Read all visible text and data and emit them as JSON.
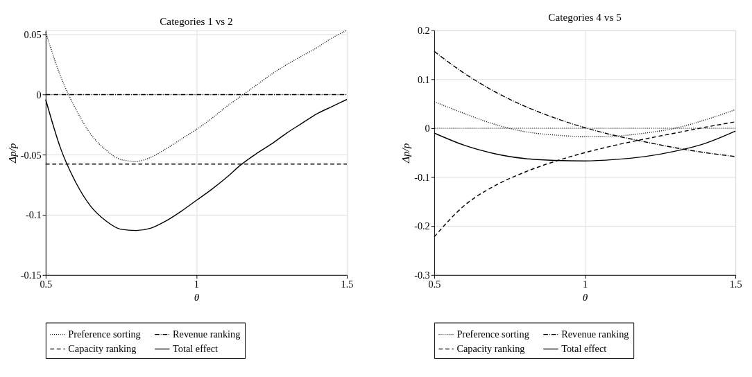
{
  "chart_data": [
    {
      "type": "line",
      "title": "Categories 1 vs 2",
      "xlabel": "θ",
      "ylabel": "Δp/p",
      "legend": "bottom",
      "grid": true,
      "x": [
        0.5,
        0.55,
        0.6,
        0.65,
        0.7,
        0.75,
        0.8,
        0.85,
        0.9,
        0.95,
        1.0,
        1.05,
        1.1,
        1.15,
        1.2,
        1.25,
        1.3,
        1.35,
        1.4,
        1.45,
        1.5
      ],
      "xlim": [
        0.5,
        1.5
      ],
      "xticks": [
        0.5,
        1,
        1.5
      ],
      "ylim": [
        -0.15,
        0.0535
      ],
      "yticks": [
        -0.15,
        -0.1,
        -0.05,
        0,
        0.05
      ],
      "series": [
        {
          "name": "Preference sorting",
          "color": "#000000",
          "line_style": "dotted",
          "values": [
            0.052,
            0.015,
            -0.012,
            -0.033,
            -0.046,
            -0.054,
            -0.0555,
            -0.052,
            -0.045,
            -0.037,
            -0.029,
            -0.02,
            -0.01,
            -0.001,
            0.008,
            0.017,
            0.025,
            0.032,
            0.039,
            0.047,
            0.0535
          ]
        },
        {
          "name": "Revenue ranking",
          "color": "#000000",
          "line_style": "dashdot",
          "values": [
            0,
            0,
            0,
            0,
            0,
            0,
            0,
            0,
            0,
            0,
            0,
            0,
            0,
            0,
            0,
            0,
            0,
            0,
            0,
            0,
            0
          ]
        },
        {
          "name": "Capacity ranking",
          "color": "#000000",
          "line_style": "dashed",
          "values": [
            -0.0578,
            -0.0578,
            -0.0578,
            -0.0578,
            -0.0578,
            -0.0578,
            -0.0578,
            -0.0578,
            -0.0578,
            -0.0578,
            -0.0578,
            -0.0578,
            -0.0578,
            -0.0578,
            -0.0578,
            -0.0578,
            -0.0578,
            -0.0578,
            -0.0578,
            -0.0578,
            -0.0578
          ]
        },
        {
          "name": "Total effect",
          "color": "#000000",
          "line_style": "solid",
          "values": [
            -0.004,
            -0.045,
            -0.073,
            -0.093,
            -0.105,
            -0.112,
            -0.113,
            -0.111,
            -0.105,
            -0.097,
            -0.088,
            -0.079,
            -0.069,
            -0.058,
            -0.049,
            -0.041,
            -0.032,
            -0.024,
            -0.016,
            -0.01,
            -0.004
          ]
        }
      ]
    },
    {
      "type": "line",
      "title": "Categories 4 vs 5",
      "xlabel": "θ",
      "ylabel": "Δp/p",
      "legend": "bottom",
      "grid": true,
      "x": [
        0.5,
        0.6,
        0.7,
        0.8,
        0.9,
        1.0,
        1.1,
        1.2,
        1.3,
        1.4,
        1.5
      ],
      "xlim": [
        0.5,
        1.5
      ],
      "xticks": [
        0.5,
        1,
        1.5
      ],
      "ylim": [
        -0.3,
        0.2
      ],
      "yticks": [
        -0.3,
        -0.2,
        -0.1,
        0,
        0.1,
        0.2
      ],
      "ref_lines": [
        {
          "axis": "y",
          "value": 0,
          "color": "#000000",
          "line_style": "dotted"
        }
      ],
      "series": [
        {
          "name": "Preference sorting",
          "color": "#000000",
          "line_style": "dotted",
          "values": [
            0.054,
            0.03,
            0.008,
            -0.007,
            -0.014,
            -0.017,
            -0.016,
            -0.01,
            0.0,
            0.017,
            0.038
          ]
        },
        {
          "name": "Revenue ranking",
          "color": "#000000",
          "line_style": "dashdot",
          "values": [
            0.157,
            0.112,
            0.075,
            0.045,
            0.021,
            0.001,
            -0.015,
            -0.028,
            -0.04,
            -0.05,
            -0.058
          ]
        },
        {
          "name": "Capacity ranking",
          "color": "#000000",
          "line_style": "dashed",
          "values": [
            -0.222,
            -0.158,
            -0.118,
            -0.09,
            -0.068,
            -0.05,
            -0.035,
            -0.022,
            -0.01,
            0.002,
            0.013
          ]
        },
        {
          "name": "Total effect",
          "color": "#000000",
          "line_style": "solid",
          "values": [
            -0.01,
            -0.035,
            -0.052,
            -0.062,
            -0.066,
            -0.067,
            -0.064,
            -0.058,
            -0.047,
            -0.031,
            -0.006
          ]
        }
      ]
    }
  ]
}
